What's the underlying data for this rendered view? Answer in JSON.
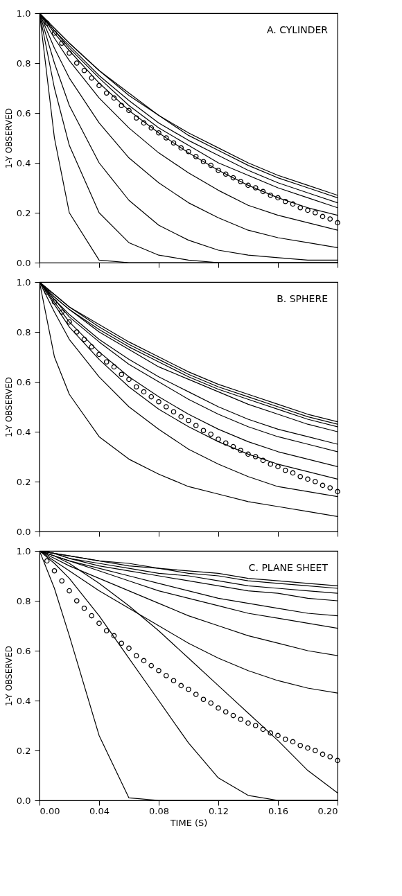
{
  "chart_data": [
    {
      "type": "line",
      "annotations": [
        "A. CYLINDER"
      ],
      "ylabel": "1-Y OBSERVED",
      "tick_labels": "y",
      "grid": false,
      "line_style": "solid",
      "marker": "none",
      "xlim": [
        0,
        0.2
      ],
      "xticks": [
        {
          "value": 0,
          "label": null
        },
        {
          "value": 0.04,
          "label": null
        },
        {
          "value": 0.08,
          "label": null
        },
        {
          "value": 0.12,
          "label": null
        },
        {
          "value": 0.16,
          "label": null
        },
        {
          "value": 0.2,
          "label": null
        }
      ],
      "ylim": [
        0,
        1
      ],
      "yticks": [
        {
          "value": 0,
          "label": "0.0"
        },
        {
          "value": 0.2,
          "label": "0.2"
        },
        {
          "value": 0.4,
          "label": "0.4"
        },
        {
          "value": 0.6,
          "label": "0.6"
        },
        {
          "value": 0.8,
          "label": "0.8"
        },
        {
          "value": 1,
          "label": "1.0"
        }
      ],
      "x": [
        0,
        0.01,
        0.02,
        0.04,
        0.06,
        0.08,
        0.1,
        0.12,
        0.14,
        0.16,
        0.18,
        0.2
      ],
      "series": [
        {
          "color": "#000000",
          "values": [
            1,
            0.94,
            0.88,
            0.77,
            0.68,
            0.59,
            0.52,
            0.46,
            0.4,
            0.35,
            0.31,
            0.27
          ]
        },
        {
          "color": "#000000",
          "values": [
            1,
            0.94,
            0.88,
            0.77,
            0.67,
            0.59,
            0.51,
            0.45,
            0.39,
            0.34,
            0.3,
            0.26
          ]
        },
        {
          "color": "#000000",
          "values": [
            1,
            0.93,
            0.87,
            0.75,
            0.65,
            0.56,
            0.49,
            0.43,
            0.37,
            0.32,
            0.28,
            0.24
          ]
        },
        {
          "color": "#000000",
          "values": [
            1,
            0.93,
            0.86,
            0.74,
            0.63,
            0.54,
            0.47,
            0.4,
            0.35,
            0.3,
            0.26,
            0.22
          ]
        },
        {
          "color": "#000000",
          "values": [
            1,
            0.92,
            0.85,
            0.72,
            0.61,
            0.52,
            0.44,
            0.37,
            0.31,
            0.26,
            0.22,
            0.19
          ]
        },
        {
          "color": "#000000",
          "values": [
            1,
            0.9,
            0.81,
            0.66,
            0.54,
            0.44,
            0.36,
            0.29,
            0.23,
            0.19,
            0.16,
            0.13
          ]
        },
        {
          "color": "#000000",
          "values": [
            1,
            0.86,
            0.74,
            0.56,
            0.42,
            0.32,
            0.24,
            0.18,
            0.13,
            0.1,
            0.08,
            0.06
          ]
        },
        {
          "color": "#000000",
          "values": [
            1,
            0.8,
            0.63,
            0.4,
            0.25,
            0.15,
            0.09,
            0.05,
            0.03,
            0.02,
            0.01,
            0.01
          ]
        },
        {
          "color": "#000000",
          "values": [
            1,
            0.7,
            0.47,
            0.2,
            0.08,
            0.03,
            0.01,
            0,
            0,
            0,
            0,
            0
          ]
        },
        {
          "color": "#000000",
          "values": [
            1,
            0.5,
            0.2,
            0.01,
            0,
            0,
            0,
            0,
            0,
            0,
            0,
            0
          ]
        },
        {
          "type": "scatter",
          "marker": "circle",
          "color": "#000000",
          "x": [
            0.005,
            0.01,
            0.015,
            0.02,
            0.025,
            0.03,
            0.035,
            0.04,
            0.045,
            0.05,
            0.055,
            0.06,
            0.065,
            0.07,
            0.075,
            0.08,
            0.085,
            0.09,
            0.095,
            0.1,
            0.105,
            0.11,
            0.115,
            0.12,
            0.125,
            0.13,
            0.135,
            0.14,
            0.145,
            0.15,
            0.155,
            0.16,
            0.165,
            0.17,
            0.175,
            0.18,
            0.185,
            0.19,
            0.195,
            0.2
          ],
          "values": [
            0.96,
            0.92,
            0.88,
            0.84,
            0.8,
            0.77,
            0.74,
            0.71,
            0.68,
            0.66,
            0.63,
            0.61,
            0.58,
            0.56,
            0.54,
            0.52,
            0.5,
            0.48,
            0.46,
            0.445,
            0.425,
            0.405,
            0.39,
            0.37,
            0.355,
            0.34,
            0.325,
            0.31,
            0.3,
            0.285,
            0.27,
            0.26,
            0.245,
            0.235,
            0.22,
            0.21,
            0.2,
            0.185,
            0.175,
            0.16
          ]
        }
      ]
    },
    {
      "type": "line",
      "annotations": [
        "B. SPHERE"
      ],
      "ylabel": "1-Y OBSERVED",
      "tick_labels": "y",
      "grid": false,
      "line_style": "solid",
      "marker": "none",
      "xlim": [
        0,
        0.2
      ],
      "xticks": [
        {
          "value": 0,
          "label": null
        },
        {
          "value": 0.04,
          "label": null
        },
        {
          "value": 0.08,
          "label": null
        },
        {
          "value": 0.12,
          "label": null
        },
        {
          "value": 0.16,
          "label": null
        },
        {
          "value": 0.2,
          "label": null
        }
      ],
      "ylim": [
        0,
        1
      ],
      "yticks": [
        {
          "value": 0,
          "label": "0.0"
        },
        {
          "value": 0.2,
          "label": "0.2"
        },
        {
          "value": 0.4,
          "label": "0.4"
        },
        {
          "value": 0.6,
          "label": "0.6"
        },
        {
          "value": 0.8,
          "label": "0.8"
        },
        {
          "value": 1,
          "label": "1.0"
        }
      ],
      "x": [
        0,
        0.01,
        0.02,
        0.04,
        0.06,
        0.08,
        0.1,
        0.12,
        0.14,
        0.16,
        0.18,
        0.2
      ],
      "series": [
        {
          "color": "#000000",
          "values": [
            1,
            0.95,
            0.9,
            0.83,
            0.76,
            0.7,
            0.64,
            0.59,
            0.55,
            0.51,
            0.47,
            0.44
          ]
        },
        {
          "color": "#000000",
          "values": [
            1,
            0.95,
            0.9,
            0.82,
            0.75,
            0.69,
            0.63,
            0.58,
            0.54,
            0.5,
            0.46,
            0.43
          ]
        },
        {
          "color": "#000000",
          "values": [
            1,
            0.94,
            0.89,
            0.81,
            0.74,
            0.68,
            0.62,
            0.57,
            0.53,
            0.49,
            0.45,
            0.42
          ]
        },
        {
          "color": "#000000",
          "values": [
            1,
            0.94,
            0.89,
            0.8,
            0.73,
            0.66,
            0.61,
            0.56,
            0.51,
            0.47,
            0.43,
            0.4
          ]
        },
        {
          "color": "#000000",
          "values": [
            1,
            0.93,
            0.87,
            0.77,
            0.69,
            0.62,
            0.56,
            0.5,
            0.45,
            0.41,
            0.38,
            0.35
          ]
        },
        {
          "color": "#000000",
          "values": [
            1,
            0.93,
            0.86,
            0.76,
            0.67,
            0.6,
            0.53,
            0.47,
            0.42,
            0.38,
            0.35,
            0.32
          ]
        },
        {
          "color": "#000000",
          "values": [
            1,
            0.92,
            0.84,
            0.72,
            0.62,
            0.54,
            0.47,
            0.41,
            0.36,
            0.32,
            0.29,
            0.26
          ]
        },
        {
          "color": "#000000",
          "values": [
            1,
            0.91,
            0.82,
            0.69,
            0.58,
            0.49,
            0.42,
            0.36,
            0.31,
            0.27,
            0.24,
            0.21
          ]
        },
        {
          "color": "#000000",
          "values": [
            1,
            0.88,
            0.77,
            0.62,
            0.5,
            0.41,
            0.33,
            0.27,
            0.22,
            0.18,
            0.16,
            0.14
          ]
        },
        {
          "color": "#000000",
          "values": [
            1,
            0.7,
            0.55,
            0.38,
            0.29,
            0.23,
            0.18,
            0.15,
            0.12,
            0.1,
            0.08,
            0.06
          ]
        },
        {
          "type": "scatter",
          "marker": "circle",
          "color": "#000000",
          "x": [
            0.005,
            0.01,
            0.015,
            0.02,
            0.025,
            0.03,
            0.035,
            0.04,
            0.045,
            0.05,
            0.055,
            0.06,
            0.065,
            0.07,
            0.075,
            0.08,
            0.085,
            0.09,
            0.095,
            0.1,
            0.105,
            0.11,
            0.115,
            0.12,
            0.125,
            0.13,
            0.135,
            0.14,
            0.145,
            0.15,
            0.155,
            0.16,
            0.165,
            0.17,
            0.175,
            0.18,
            0.185,
            0.19,
            0.195,
            0.2
          ],
          "values": [
            0.96,
            0.92,
            0.88,
            0.84,
            0.8,
            0.77,
            0.74,
            0.71,
            0.68,
            0.66,
            0.63,
            0.61,
            0.58,
            0.56,
            0.54,
            0.52,
            0.5,
            0.48,
            0.46,
            0.445,
            0.425,
            0.405,
            0.39,
            0.37,
            0.355,
            0.34,
            0.325,
            0.31,
            0.3,
            0.285,
            0.27,
            0.26,
            0.245,
            0.235,
            0.22,
            0.21,
            0.2,
            0.185,
            0.175,
            0.16
          ]
        }
      ]
    },
    {
      "type": "line",
      "annotations": [
        "C. PLANE SHEET"
      ],
      "xlabel": "TIME    (S)",
      "ylabel": "1-Y OBSERVED",
      "grid": false,
      "line_style": "solid",
      "marker": "none",
      "xlim": [
        0,
        0.2
      ],
      "xticks": [
        {
          "value": 0,
          "label": "0.00"
        },
        {
          "value": 0.04,
          "label": "0.04"
        },
        {
          "value": 0.08,
          "label": "0.08"
        },
        {
          "value": 0.12,
          "label": "0.12"
        },
        {
          "value": 0.16,
          "label": "0.16"
        },
        {
          "value": 0.2,
          "label": "0.20"
        }
      ],
      "ylim": [
        0,
        1
      ],
      "yticks": [
        {
          "value": 0,
          "label": "0.0"
        },
        {
          "value": 0.2,
          "label": "0.2"
        },
        {
          "value": 0.4,
          "label": "0.4"
        },
        {
          "value": 0.6,
          "label": "0.6"
        },
        {
          "value": 0.8,
          "label": "0.8"
        },
        {
          "value": 1,
          "label": "1.0"
        }
      ],
      "x": [
        0,
        0.01,
        0.02,
        0.04,
        0.06,
        0.08,
        0.1,
        0.12,
        0.14,
        0.16,
        0.18,
        0.2
      ],
      "series": [
        {
          "color": "#000000",
          "values": [
            1,
            0.99,
            0.98,
            0.96,
            0.95,
            0.93,
            0.92,
            0.91,
            0.89,
            0.88,
            0.87,
            0.86
          ]
        },
        {
          "color": "#000000",
          "values": [
            1,
            0.99,
            0.98,
            0.96,
            0.94,
            0.93,
            0.91,
            0.9,
            0.88,
            0.87,
            0.86,
            0.85
          ]
        },
        {
          "color": "#000000",
          "values": [
            1,
            0.99,
            0.97,
            0.95,
            0.93,
            0.91,
            0.9,
            0.88,
            0.86,
            0.85,
            0.84,
            0.83
          ]
        },
        {
          "color": "#000000",
          "values": [
            1,
            0.99,
            0.97,
            0.94,
            0.92,
            0.9,
            0.88,
            0.86,
            0.84,
            0.83,
            0.81,
            0.8
          ]
        },
        {
          "color": "#000000",
          "values": [
            1,
            0.98,
            0.96,
            0.93,
            0.9,
            0.87,
            0.84,
            0.81,
            0.79,
            0.77,
            0.75,
            0.74
          ]
        },
        {
          "color": "#000000",
          "values": [
            1,
            0.98,
            0.96,
            0.92,
            0.88,
            0.84,
            0.81,
            0.78,
            0.75,
            0.73,
            0.71,
            0.69
          ]
        },
        {
          "color": "#000000",
          "values": [
            1,
            0.97,
            0.94,
            0.89,
            0.84,
            0.79,
            0.74,
            0.7,
            0.66,
            0.63,
            0.6,
            0.58
          ]
        },
        {
          "color": "#000000",
          "values": [
            1,
            0.96,
            0.92,
            0.84,
            0.77,
            0.7,
            0.63,
            0.57,
            0.52,
            0.48,
            0.45,
            0.43
          ]
        },
        {
          "color": "#000000",
          "values": [
            1,
            0.98,
            0.95,
            0.87,
            0.78,
            0.68,
            0.57,
            0.46,
            0.35,
            0.24,
            0.12,
            0.03
          ]
        },
        {
          "color": "#000000",
          "values": [
            1,
            0.95,
            0.89,
            0.74,
            0.57,
            0.4,
            0.23,
            0.09,
            0.02,
            0,
            0,
            0
          ]
        },
        {
          "color": "#000000",
          "values": [
            1,
            0.85,
            0.66,
            0.26,
            0.01,
            0,
            0,
            0,
            0,
            0,
            0,
            0
          ]
        },
        {
          "type": "scatter",
          "marker": "circle",
          "color": "#000000",
          "x": [
            0.005,
            0.01,
            0.015,
            0.02,
            0.025,
            0.03,
            0.035,
            0.04,
            0.045,
            0.05,
            0.055,
            0.06,
            0.065,
            0.07,
            0.075,
            0.08,
            0.085,
            0.09,
            0.095,
            0.1,
            0.105,
            0.11,
            0.115,
            0.12,
            0.125,
            0.13,
            0.135,
            0.14,
            0.145,
            0.15,
            0.155,
            0.16,
            0.165,
            0.17,
            0.175,
            0.18,
            0.185,
            0.19,
            0.195,
            0.2
          ],
          "values": [
            0.96,
            0.92,
            0.88,
            0.84,
            0.8,
            0.77,
            0.74,
            0.71,
            0.68,
            0.66,
            0.63,
            0.61,
            0.58,
            0.56,
            0.54,
            0.52,
            0.5,
            0.48,
            0.46,
            0.445,
            0.425,
            0.405,
            0.39,
            0.37,
            0.355,
            0.34,
            0.325,
            0.31,
            0.3,
            0.285,
            0.27,
            0.26,
            0.245,
            0.235,
            0.22,
            0.21,
            0.2,
            0.185,
            0.175,
            0.16
          ]
        }
      ]
    }
  ]
}
